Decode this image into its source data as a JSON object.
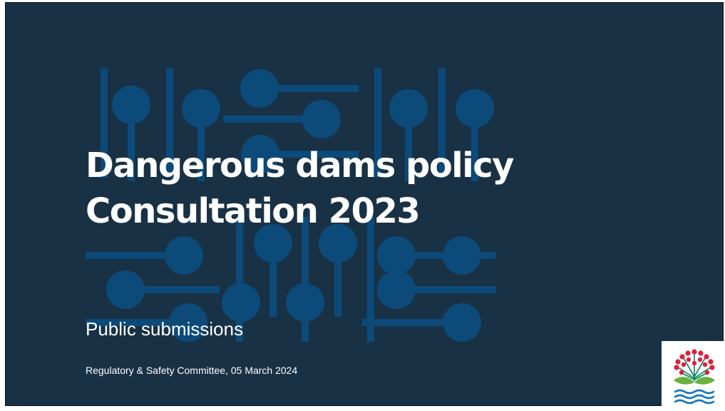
{
  "slide": {
    "title_line1": "Dangerous dams policy",
    "title_line2": "Consultation 2023",
    "subtitle": "Public submissions",
    "footer": "Regulatory & Safety Committee, 05 March 2024"
  },
  "colors": {
    "background": "#183145",
    "pattern": "#0c4a7a",
    "text": "#ffffff",
    "logo_flower": "#e01e3c",
    "logo_stem": "#00835b",
    "logo_leaf": "#6ab23e",
    "logo_water": "#1577bf"
  },
  "logo": {
    "icon": "pohutukawa-flower-water-logo"
  }
}
